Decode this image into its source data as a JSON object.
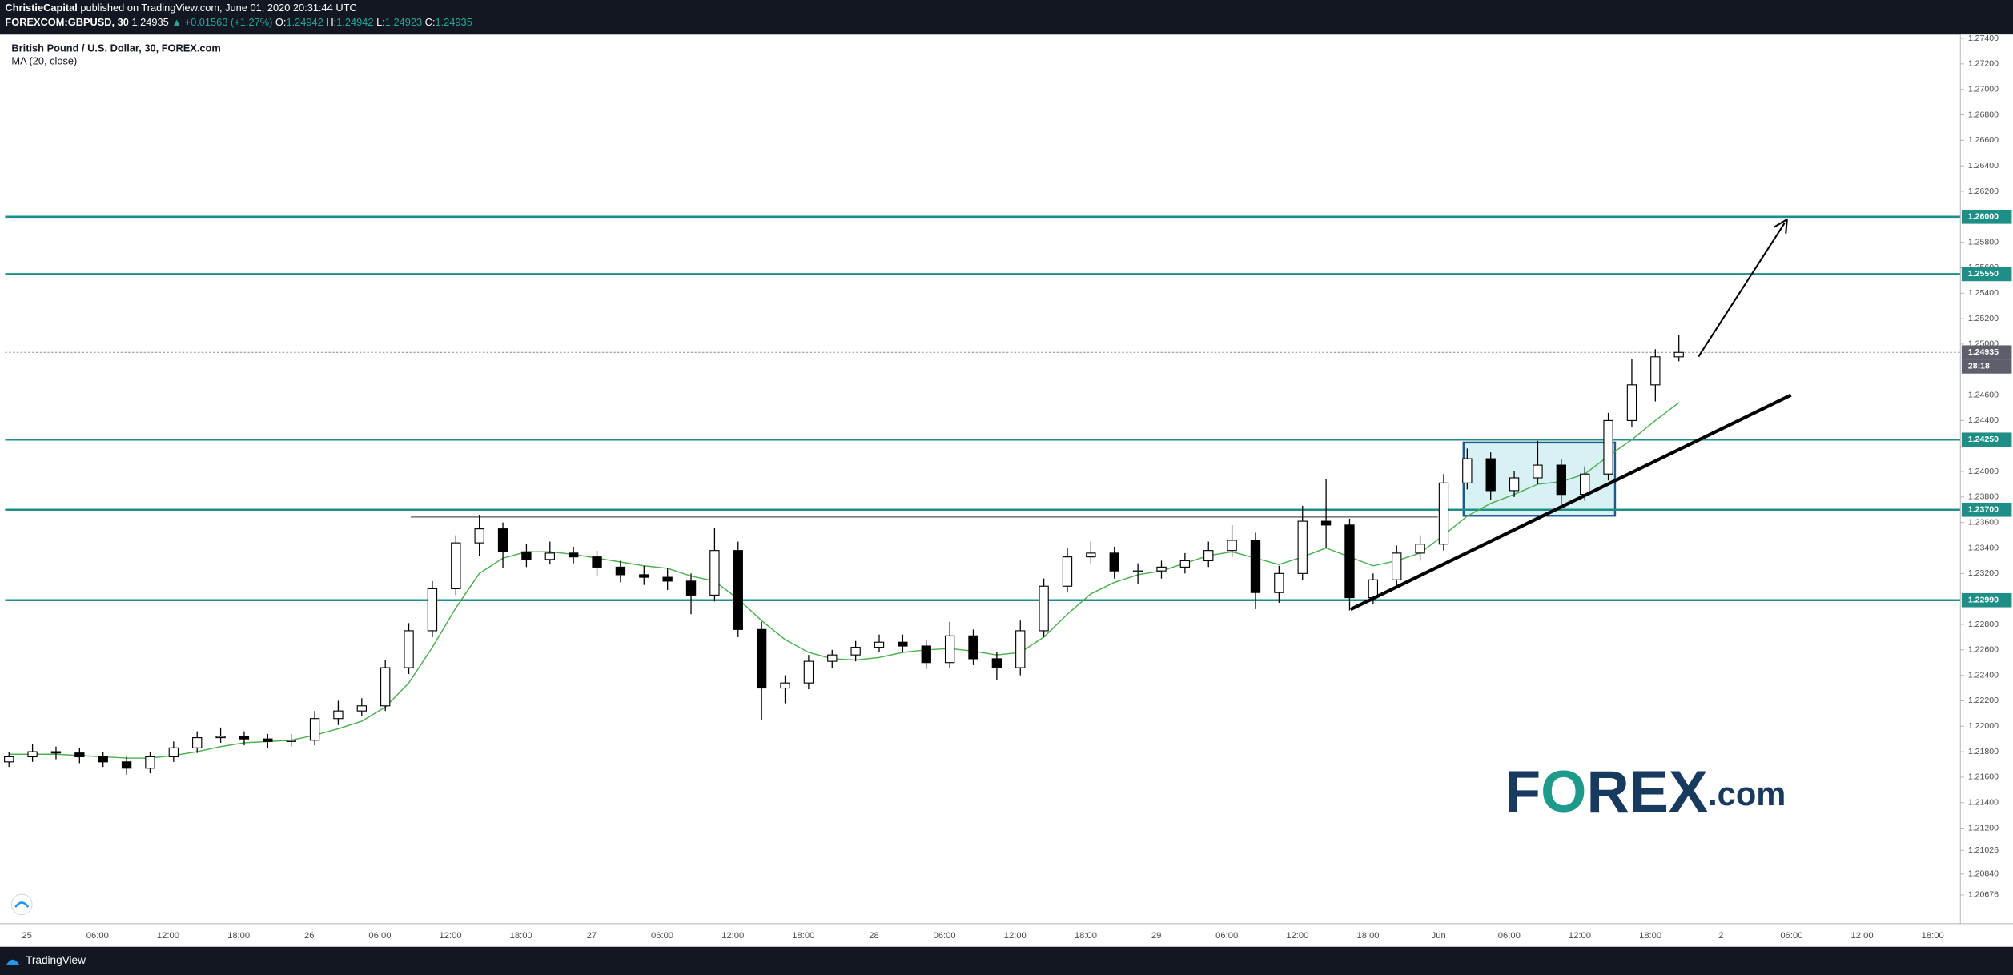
{
  "header": {
    "author": "ChristieCapital",
    "published": "published on TradingView.com, June 01, 2020 20:31:44 UTC",
    "symbol": "FOREXCOM:GBPUSD, 30",
    "price": "1.24935",
    "change": "▲ +0.01563 (+1.27%)",
    "ohlc": [
      {
        "key": "O:",
        "value": "1.24942"
      },
      {
        "key": "H:",
        "value": "1.24942"
      },
      {
        "key": "L:",
        "value": "1.24923"
      },
      {
        "key": "C:",
        "value": "1.24935"
      }
    ]
  },
  "footer": {
    "brand": "TradingView"
  },
  "logo": [
    "F",
    "O",
    "REX",
    ".com"
  ],
  "chart_data": {
    "type": "candlestick",
    "title": "British Pound / U.S. Dollar, 30, FOREX.com",
    "indicator": "MA (20, close)",
    "up_color": "#ffffff",
    "down_color": "#000000",
    "wick_color": "#000000",
    "ma_color": "#4caf50",
    "level_color": "#1e8f86",
    "ylim": [
      1.2045,
      1.2743
    ],
    "yticks": [
      {
        "value": 1.274,
        "label": "1.27400"
      },
      {
        "value": 1.272,
        "label": "1.27200"
      },
      {
        "value": 1.27,
        "label": "1.27000"
      },
      {
        "value": 1.268,
        "label": "1.26800"
      },
      {
        "value": 1.266,
        "label": "1.26600"
      },
      {
        "value": 1.264,
        "label": "1.26400"
      },
      {
        "value": 1.262,
        "label": "1.26200"
      },
      {
        "value": 1.258,
        "label": "1.25800"
      },
      {
        "value": 1.256,
        "label": "1.25600"
      },
      {
        "value": 1.254,
        "label": "1.25400"
      },
      {
        "value": 1.252,
        "label": "1.25200"
      },
      {
        "value": 1.25,
        "label": "1.25000"
      },
      {
        "value": 1.246,
        "label": "1.24600"
      },
      {
        "value": 1.244,
        "label": "1.24400"
      },
      {
        "value": 1.24,
        "label": "1.24000"
      },
      {
        "value": 1.238,
        "label": "1.23800"
      },
      {
        "value": 1.236,
        "label": "1.23600"
      },
      {
        "value": 1.234,
        "label": "1.23400"
      },
      {
        "value": 1.232,
        "label": "1.23200"
      },
      {
        "value": 1.228,
        "label": "1.22800"
      },
      {
        "value": 1.226,
        "label": "1.22600"
      },
      {
        "value": 1.224,
        "label": "1.22400"
      },
      {
        "value": 1.222,
        "label": "1.22200"
      },
      {
        "value": 1.22,
        "label": "1.22000"
      },
      {
        "value": 1.218,
        "label": "1.21800"
      },
      {
        "value": 1.216,
        "label": "1.21600"
      },
      {
        "value": 1.214,
        "label": "1.21400"
      },
      {
        "value": 1.212,
        "label": "1.21200"
      },
      {
        "value": 1.21026,
        "label": "1.21026"
      },
      {
        "value": 1.2084,
        "label": "1.20840"
      },
      {
        "value": 1.20676,
        "label": "1.20676"
      }
    ],
    "levels": [
      {
        "value": 1.26,
        "label": "1.26000"
      },
      {
        "value": 1.2555,
        "label": "1.25550"
      },
      {
        "value": 1.2425,
        "label": "1.24250"
      },
      {
        "value": 1.237,
        "label": "1.23700"
      },
      {
        "value": 1.2299,
        "label": "1.22990"
      }
    ],
    "last_price": {
      "value": 1.24935,
      "label": "1.24935"
    },
    "countdown": "28:18",
    "time_labels": [
      "25",
      "06:00",
      "12:00",
      "18:00",
      "26",
      "06:00",
      "12:00",
      "18:00",
      "27",
      "06:00",
      "12:00",
      "18:00",
      "28",
      "06:00",
      "12:00",
      "18:00",
      "29",
      "06:00",
      "12:00",
      "18:00",
      "Jun",
      "06:00",
      "12:00",
      "18:00",
      "2",
      "06:00",
      "12:00",
      "18:00"
    ],
    "candles": [
      [
        1.2172,
        1.218,
        1.2168,
        1.2176
      ],
      [
        1.2176,
        1.2186,
        1.2172,
        1.218
      ],
      [
        1.218,
        1.2184,
        1.2174,
        1.2179
      ],
      [
        1.2179,
        1.2183,
        1.2171,
        1.2176
      ],
      [
        1.2176,
        1.218,
        1.2168,
        1.2172
      ],
      [
        1.2172,
        1.2176,
        1.2162,
        1.2167
      ],
      [
        1.2167,
        1.218,
        1.2163,
        1.2176
      ],
      [
        1.2176,
        1.2188,
        1.2172,
        1.2183
      ],
      [
        1.2183,
        1.2196,
        1.2179,
        1.2191
      ],
      [
        1.2191,
        1.2199,
        1.2187,
        1.2192
      ],
      [
        1.2192,
        1.2196,
        1.2185,
        1.219
      ],
      [
        1.219,
        1.2194,
        1.2183,
        1.2188
      ],
      [
        1.2188,
        1.2194,
        1.2184,
        1.2189
      ],
      [
        1.2189,
        1.2212,
        1.2185,
        1.2206
      ],
      [
        1.2206,
        1.222,
        1.2201,
        1.2212
      ],
      [
        1.2212,
        1.2222,
        1.2208,
        1.2216
      ],
      [
        1.2216,
        1.2252,
        1.2212,
        1.2246
      ],
      [
        1.2246,
        1.2281,
        1.2241,
        1.2275
      ],
      [
        1.2275,
        1.2314,
        1.227,
        1.2308
      ],
      [
        1.2308,
        1.235,
        1.2303,
        1.2344
      ],
      [
        1.2344,
        1.2366,
        1.2334,
        1.2355
      ],
      [
        1.2355,
        1.236,
        1.2324,
        1.2337
      ],
      [
        1.2337,
        1.2343,
        1.2325,
        1.2331
      ],
      [
        1.2331,
        1.2345,
        1.2327,
        1.2336
      ],
      [
        1.2336,
        1.2341,
        1.2328,
        1.2333
      ],
      [
        1.2333,
        1.2338,
        1.2318,
        1.2325
      ],
      [
        1.2325,
        1.233,
        1.2313,
        1.2319
      ],
      [
        1.2319,
        1.2326,
        1.2311,
        1.2317
      ],
      [
        1.2317,
        1.2324,
        1.2307,
        1.2314
      ],
      [
        1.2314,
        1.232,
        1.2288,
        1.2303
      ],
      [
        1.2303,
        1.2356,
        1.2298,
        1.2338
      ],
      [
        1.2338,
        1.2345,
        1.227,
        1.2276
      ],
      [
        1.2276,
        1.2282,
        1.2205,
        1.223
      ],
      [
        1.223,
        1.224,
        1.2218,
        1.2234
      ],
      [
        1.2234,
        1.2256,
        1.2229,
        1.2251
      ],
      [
        1.2251,
        1.226,
        1.2246,
        1.2256
      ],
      [
        1.2256,
        1.2267,
        1.2251,
        1.2262
      ],
      [
        1.2262,
        1.2272,
        1.2258,
        1.2266
      ],
      [
        1.2266,
        1.2272,
        1.2258,
        1.2263
      ],
      [
        1.2263,
        1.2268,
        1.2245,
        1.225
      ],
      [
        1.225,
        1.2282,
        1.2246,
        1.2271
      ],
      [
        1.2271,
        1.2276,
        1.2248,
        1.2253
      ],
      [
        1.2253,
        1.2258,
        1.2236,
        1.2246
      ],
      [
        1.2246,
        1.2283,
        1.224,
        1.2275
      ],
      [
        1.2275,
        1.2316,
        1.227,
        1.231
      ],
      [
        1.231,
        1.234,
        1.2305,
        1.2333
      ],
      [
        1.2333,
        1.2345,
        1.2328,
        1.2336
      ],
      [
        1.2336,
        1.2341,
        1.2316,
        1.2322
      ],
      [
        1.2322,
        1.2328,
        1.2312,
        1.2322
      ],
      [
        1.2322,
        1.233,
        1.2316,
        1.2325
      ],
      [
        1.2325,
        1.2336,
        1.232,
        1.233
      ],
      [
        1.233,
        1.2345,
        1.2325,
        1.2338
      ],
      [
        1.2338,
        1.2358,
        1.2333,
        1.2346
      ],
      [
        1.2346,
        1.2352,
        1.2292,
        1.2305
      ],
      [
        1.2305,
        1.2326,
        1.2297,
        1.232
      ],
      [
        1.232,
        1.2373,
        1.2315,
        1.2361
      ],
      [
        1.2361,
        1.2394,
        1.234,
        1.2358
      ],
      [
        1.2358,
        1.2363,
        1.2291,
        1.2301
      ],
      [
        1.2301,
        1.232,
        1.2296,
        1.2315
      ],
      [
        1.2315,
        1.2342,
        1.231,
        1.2336
      ],
      [
        1.2336,
        1.235,
        1.233,
        1.2343
      ],
      [
        1.2343,
        1.2398,
        1.2338,
        1.2391
      ],
      [
        1.2391,
        1.2418,
        1.2386,
        1.241
      ],
      [
        1.241,
        1.2415,
        1.2378,
        1.2385
      ],
      [
        1.2385,
        1.24,
        1.238,
        1.2395
      ],
      [
        1.2395,
        1.2424,
        1.239,
        1.2405
      ],
      [
        1.2405,
        1.241,
        1.2375,
        1.2382
      ],
      [
        1.2382,
        1.2404,
        1.2377,
        1.2398
      ],
      [
        1.2398,
        1.2446,
        1.2393,
        1.244
      ],
      [
        1.244,
        1.2488,
        1.2435,
        1.2468
      ],
      [
        1.2468,
        1.2496,
        1.2455,
        1.249
      ],
      [
        1.249,
        1.25075,
        1.24865,
        1.24935
      ]
    ],
    "ma": [
      1.2178,
      1.2178,
      1.2178,
      1.2177,
      1.2176,
      1.2175,
      1.2175,
      1.2177,
      1.218,
      1.2184,
      1.2187,
      1.2188,
      1.2189,
      1.2193,
      1.2198,
      1.2204,
      1.2215,
      1.2234,
      1.2262,
      1.2293,
      1.232,
      1.2332,
      1.2337,
      1.2337,
      1.2335,
      1.2332,
      1.2329,
      1.2326,
      1.2324,
      1.2318,
      1.2314,
      1.23,
      1.2283,
      1.2268,
      1.2258,
      1.2253,
      1.2252,
      1.2254,
      1.2258,
      1.226,
      1.2261,
      1.2259,
      1.2256,
      1.2258,
      1.227,
      1.2288,
      1.2304,
      1.2313,
      1.2319,
      1.2322,
      1.2328,
      1.2334,
      1.2337,
      1.2332,
      1.2327,
      1.2333,
      1.234,
      1.2333,
      1.2326,
      1.233,
      1.2336,
      1.235,
      1.2365,
      1.2375,
      1.2382,
      1.239,
      1.2392,
      1.2398,
      1.2412,
      1.2425,
      1.244,
      1.2454
    ]
  }
}
